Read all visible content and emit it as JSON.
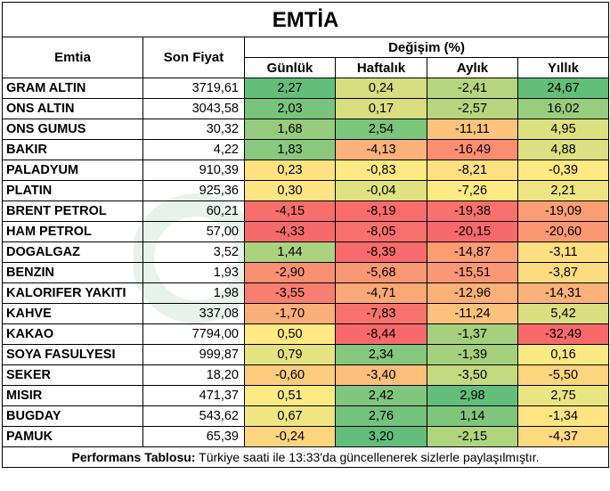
{
  "title": "EMTİA",
  "headers": {
    "commodity": "Emtia",
    "last_price": "Son Fiyat",
    "change_group": "Değişim (%)",
    "daily": "Günlük",
    "weekly": "Haftalık",
    "monthly": "Aylık",
    "yearly": "Yıllık"
  },
  "rows": [
    {
      "name": "GRAM ALTIN",
      "price": "3719,61",
      "d": "2,27",
      "w": "0,24",
      "m": "-2,41",
      "y": "24,67"
    },
    {
      "name": "ONS ALTIN",
      "price": "3043,58",
      "d": "2,03",
      "w": "0,17",
      "m": "-2,57",
      "y": "16,02"
    },
    {
      "name": "ONS GUMUS",
      "price": "30,32",
      "d": "1,68",
      "w": "2,54",
      "m": "-11,11",
      "y": "4,95"
    },
    {
      "name": "BAKIR",
      "price": "4,22",
      "d": "1,83",
      "w": "-4,13",
      "m": "-16,49",
      "y": "4,88"
    },
    {
      "name": "PALADYUM",
      "price": "910,39",
      "d": "0,23",
      "w": "-0,83",
      "m": "-8,21",
      "y": "-0,39"
    },
    {
      "name": "PLATIN",
      "price": "925,36",
      "d": "0,30",
      "w": "-0,04",
      "m": "-7,26",
      "y": "2,21"
    },
    {
      "name": "BRENT PETROL",
      "price": "60,21",
      "d": "-4,15",
      "w": "-8,19",
      "m": "-19,38",
      "y": "-19,09"
    },
    {
      "name": "HAM PETROL",
      "price": "57,00",
      "d": "-4,33",
      "w": "-8,05",
      "m": "-20,15",
      "y": "-20,60"
    },
    {
      "name": "DOGALGAZ",
      "price": "3,52",
      "d": "1,44",
      "w": "-8,39",
      "m": "-14,87",
      "y": "-3,11"
    },
    {
      "name": "BENZIN",
      "price": "1,93",
      "d": "-2,90",
      "w": "-5,68",
      "m": "-15,51",
      "y": "-3,87"
    },
    {
      "name": "KALORIFER YAKITI",
      "price": "1,98",
      "d": "-3,55",
      "w": "-4,71",
      "m": "-12,96",
      "y": "-14,31"
    },
    {
      "name": "KAHVE",
      "price": "337,08",
      "d": "-1,70",
      "w": "-7,83",
      "m": "-11,24",
      "y": "5,42"
    },
    {
      "name": "KAKAO",
      "price": "7794,00",
      "d": "0,50",
      "w": "-8,44",
      "m": "-1,37",
      "y": "-32,49"
    },
    {
      "name": "SOYA FASULYESI",
      "price": "999,87",
      "d": "0,79",
      "w": "2,34",
      "m": "-1,39",
      "y": "0,16"
    },
    {
      "name": "SEKER",
      "price": "18,20",
      "d": "-0,60",
      "w": "-3,40",
      "m": "-3,50",
      "y": "-5,50"
    },
    {
      "name": "MISIR",
      "price": "471,37",
      "d": "0,51",
      "w": "2,42",
      "m": "2,98",
      "y": "2,75"
    },
    {
      "name": "BUGDAY",
      "price": "543,62",
      "d": "0,67",
      "w": "2,76",
      "m": "1,14",
      "y": "-1,34"
    },
    {
      "name": "PAMUK",
      "price": "65,39",
      "d": "-0,24",
      "w": "3,20",
      "m": "-2,15",
      "y": "-4,37"
    }
  ],
  "footer": {
    "label": "Performans Tablosu:",
    "text": " Türkiye saati ile 13:33'da güncellenerek sizlerle paylaşılmıştır."
  },
  "colors": {
    "strong_green": "#63be7b",
    "mid_green": "#a9d27f",
    "light_green": "#dbe383",
    "yellow": "#fee983",
    "orange": "#fbaa77",
    "red": "#f8696b"
  }
}
